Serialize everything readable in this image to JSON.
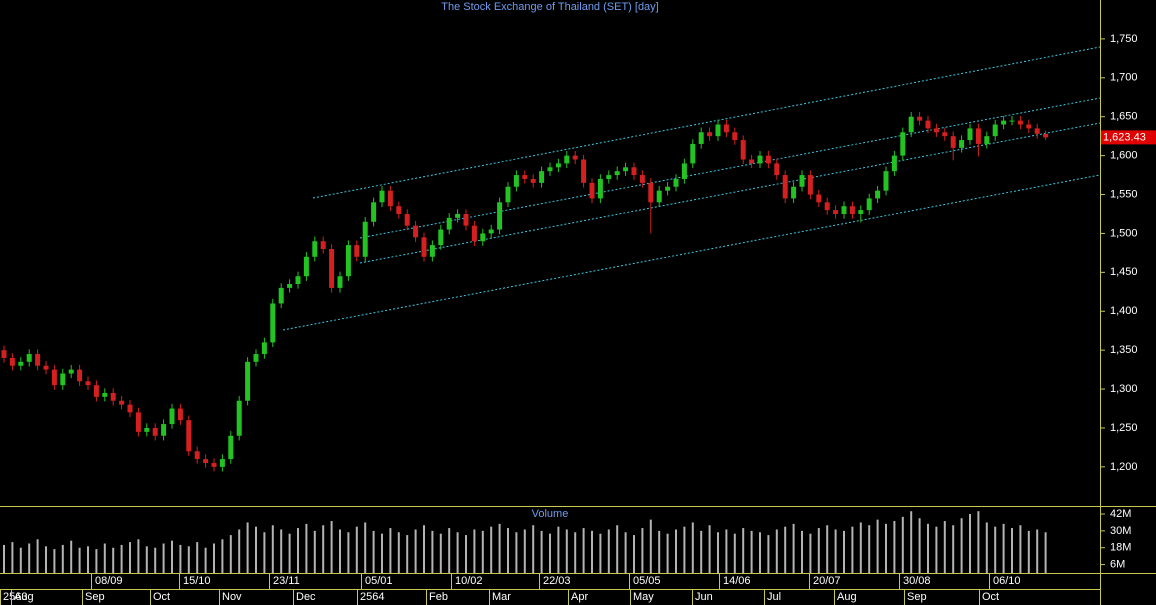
{
  "chart_data": {
    "type": "candlestick",
    "title": "The Stock Exchange of Thailand (SET) [day]",
    "open": [
      1350,
      1340,
      1330,
      1335,
      1345,
      1330,
      1325,
      1305,
      1320,
      1325,
      1310,
      1305,
      1290,
      1295,
      1285,
      1280,
      1270,
      1245,
      1250,
      1240,
      1255,
      1275,
      1260,
      1220,
      1210,
      1205,
      1200,
      1210,
      1240,
      1285,
      1335,
      1345,
      1360,
      1410,
      1430,
      1435,
      1445,
      1470,
      1490,
      1480,
      1430,
      1445,
      1485,
      1470,
      1515,
      1540,
      1555,
      1535,
      1525,
      1510,
      1495,
      1470,
      1485,
      1505,
      1520,
      1525,
      1510,
      1490,
      1500,
      1505,
      1540,
      1560,
      1575,
      1570,
      1565,
      1580,
      1585,
      1590,
      1600,
      1595,
      1565,
      1545,
      1570,
      1575,
      1580,
      1585,
      1575,
      1565,
      1540,
      1555,
      1560,
      1570,
      1590,
      1615,
      1630,
      1625,
      1640,
      1630,
      1620,
      1595,
      1590,
      1600,
      1590,
      1575,
      1545,
      1560,
      1575,
      1550,
      1540,
      1530,
      1525,
      1535,
      1525,
      1530,
      1545,
      1555,
      1580,
      1600,
      1630,
      1650,
      1645,
      1635,
      1630,
      1625,
      1610,
      1620,
      1635,
      1615,
      1625,
      1640,
      1645,
      1645,
      1640,
      1635,
      1628
    ],
    "high": [
      1356,
      1346,
      1341,
      1351,
      1351,
      1336,
      1331,
      1326,
      1331,
      1331,
      1316,
      1311,
      1301,
      1301,
      1291,
      1286,
      1276,
      1256,
      1256,
      1261,
      1281,
      1281,
      1266,
      1226,
      1216,
      1211,
      1216,
      1246,
      1291,
      1341,
      1351,
      1366,
      1416,
      1436,
      1441,
      1451,
      1476,
      1496,
      1496,
      1486,
      1451,
      1491,
      1491,
      1521,
      1546,
      1561,
      1561,
      1541,
      1531,
      1516,
      1501,
      1491,
      1511,
      1526,
      1531,
      1531,
      1516,
      1506,
      1511,
      1546,
      1566,
      1581,
      1581,
      1576,
      1586,
      1591,
      1596,
      1606,
      1606,
      1601,
      1571,
      1576,
      1581,
      1586,
      1591,
      1591,
      1581,
      1571,
      1561,
      1566,
      1576,
      1596,
      1621,
      1636,
      1636,
      1646,
      1646,
      1636,
      1626,
      1601,
      1606,
      1606,
      1596,
      1581,
      1566,
      1581,
      1581,
      1556,
      1546,
      1536,
      1541,
      1541,
      1536,
      1551,
      1561,
      1586,
      1606,
      1636,
      1656,
      1656,
      1651,
      1641,
      1636,
      1631,
      1626,
      1641,
      1641,
      1631,
      1646,
      1651,
      1651,
      1651,
      1646,
      1641,
      1632
    ],
    "low": [
      1334,
      1324,
      1324,
      1329,
      1324,
      1319,
      1299,
      1299,
      1314,
      1304,
      1299,
      1284,
      1284,
      1279,
      1274,
      1264,
      1239,
      1239,
      1234,
      1234,
      1249,
      1254,
      1214,
      1204,
      1199,
      1194,
      1194,
      1204,
      1234,
      1279,
      1329,
      1339,
      1354,
      1404,
      1424,
      1429,
      1439,
      1464,
      1474,
      1424,
      1424,
      1439,
      1464,
      1464,
      1509,
      1534,
      1529,
      1519,
      1504,
      1489,
      1464,
      1464,
      1479,
      1499,
      1514,
      1504,
      1484,
      1484,
      1494,
      1499,
      1534,
      1554,
      1564,
      1559,
      1559,
      1574,
      1579,
      1584,
      1589,
      1559,
      1539,
      1539,
      1564,
      1569,
      1574,
      1569,
      1559,
      1500,
      1534,
      1549,
      1554,
      1564,
      1584,
      1609,
      1619,
      1619,
      1624,
      1614,
      1589,
      1584,
      1584,
      1584,
      1569,
      1539,
      1539,
      1554,
      1544,
      1534,
      1524,
      1519,
      1519,
      1519,
      1514,
      1524,
      1539,
      1549,
      1574,
      1594,
      1624,
      1639,
      1629,
      1624,
      1619,
      1594,
      1604,
      1614,
      1599,
      1609,
      1619,
      1634,
      1639,
      1634,
      1629,
      1622,
      1620
    ],
    "close": [
      1340,
      1330,
      1335,
      1345,
      1330,
      1325,
      1305,
      1320,
      1325,
      1310,
      1305,
      1290,
      1295,
      1285,
      1280,
      1270,
      1245,
      1250,
      1240,
      1255,
      1275,
      1260,
      1220,
      1210,
      1205,
      1200,
      1210,
      1240,
      1285,
      1335,
      1345,
      1360,
      1410,
      1430,
      1435,
      1445,
      1470,
      1490,
      1480,
      1430,
      1445,
      1485,
      1470,
      1515,
      1540,
      1555,
      1535,
      1525,
      1510,
      1495,
      1470,
      1485,
      1505,
      1520,
      1525,
      1510,
      1490,
      1500,
      1505,
      1540,
      1560,
      1575,
      1570,
      1565,
      1580,
      1585,
      1590,
      1600,
      1595,
      1565,
      1545,
      1570,
      1575,
      1580,
      1585,
      1575,
      1565,
      1540,
      1555,
      1560,
      1570,
      1590,
      1615,
      1630,
      1625,
      1640,
      1630,
      1620,
      1595,
      1590,
      1600,
      1590,
      1575,
      1545,
      1560,
      1575,
      1550,
      1540,
      1530,
      1525,
      1535,
      1525,
      1530,
      1545,
      1555,
      1580,
      1600,
      1630,
      1650,
      1645,
      1635,
      1630,
      1625,
      1610,
      1620,
      1635,
      1615,
      1625,
      1640,
      1645,
      1645,
      1640,
      1635,
      1628,
      1623.43
    ],
    "up_color": "#22c322",
    "down_color": "#d42020",
    "ylim": [
      1151,
      1800
    ],
    "yticks": [
      {
        "value": 1200,
        "label": "1,200"
      },
      {
        "value": 1250,
        "label": "1,250"
      },
      {
        "value": 1300,
        "label": "1,300"
      },
      {
        "value": 1350,
        "label": "1,350"
      },
      {
        "value": 1400,
        "label": "1,400"
      },
      {
        "value": 1450,
        "label": "1,450"
      },
      {
        "value": 1500,
        "label": "1,500"
      },
      {
        "value": 1550,
        "label": "1,550"
      },
      {
        "value": 1600,
        "label": "1,600"
      },
      {
        "value": 1650,
        "label": "1,650"
      },
      {
        "value": 1700,
        "label": "1,700"
      },
      {
        "value": 1750,
        "label": "1,750"
      }
    ],
    "last_price": {
      "value": 1623.43,
      "label": "1,623.43"
    },
    "volume": {
      "title": "Volume",
      "color": "#b4b4b4",
      "values": [
        20000000,
        22000000,
        18000000,
        21000000,
        24000000,
        19000000,
        17000000,
        20000000,
        23000000,
        18000000,
        19000000,
        17000000,
        21000000,
        18000000,
        20000000,
        22000000,
        24000000,
        19000000,
        18000000,
        21000000,
        23000000,
        20000000,
        19000000,
        22000000,
        18000000,
        21000000,
        24000000,
        27000000,
        31000000,
        36000000,
        33000000,
        29000000,
        34000000,
        31000000,
        28000000,
        32000000,
        35000000,
        30000000,
        34000000,
        37000000,
        31000000,
        29000000,
        33000000,
        36000000,
        30000000,
        28000000,
        32000000,
        29000000,
        27000000,
        31000000,
        34000000,
        30000000,
        28000000,
        32000000,
        29000000,
        27000000,
        31000000,
        30000000,
        33000000,
        35000000,
        32000000,
        29000000,
        31000000,
        34000000,
        30000000,
        28000000,
        33000000,
        31000000,
        29000000,
        32000000,
        30000000,
        28000000,
        31000000,
        34000000,
        29000000,
        27000000,
        32000000,
        38000000,
        30000000,
        28000000,
        31000000,
        33000000,
        36000000,
        30000000,
        34000000,
        29000000,
        31000000,
        28000000,
        32000000,
        30000000,
        29000000,
        27000000,
        31000000,
        33000000,
        35000000,
        30000000,
        28000000,
        32000000,
        34000000,
        31000000,
        30000000,
        33000000,
        36000000,
        34000000,
        38000000,
        35000000,
        37000000,
        40000000,
        44000000,
        39000000,
        35000000,
        33000000,
        37000000,
        34000000,
        39000000,
        42000000,
        44000000,
        36000000,
        33000000,
        35000000,
        32000000,
        34000000,
        30000000,
        31000000,
        29000000
      ],
      "ylim": [
        0,
        47000000
      ],
      "yticks": [
        {
          "value": 6000000,
          "label": "6M"
        },
        {
          "value": 18000000,
          "label": "18M"
        },
        {
          "value": 30000000,
          "label": "30M"
        },
        {
          "value": 42000000,
          "label": "42M"
        }
      ]
    },
    "x_axis": {
      "top_labels": [
        "08/09",
        "15/10",
        "23/11",
        "05/01",
        "10/02",
        "22/03",
        "05/05",
        "14/06",
        "20/07",
        "30/08",
        "06/10"
      ],
      "bottom_labels": [
        "2563",
        "Aug",
        "Sep",
        "Oct",
        "Nov",
        "Dec",
        "2564",
        "Feb",
        "Mar",
        "Apr",
        "May",
        "Jun",
        "Jul",
        "Aug",
        "Sep",
        "Oct"
      ]
    }
  }
}
